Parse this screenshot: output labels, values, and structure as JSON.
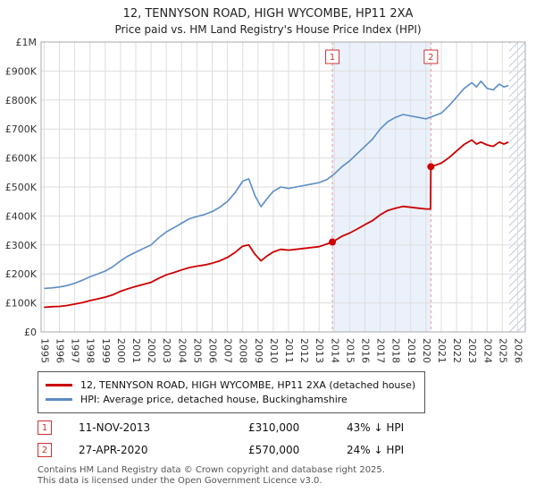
{
  "chart_data": {
    "type": "line",
    "title": "12, TENNYSON ROAD, HIGH WYCOMBE, HP11 2XA",
    "subtitle": "Price paid vs. HM Land Registry's House Price Index (HPI)",
    "xlim": [
      1994.8,
      2026.5
    ],
    "ylim": [
      0,
      1000000
    ],
    "x_ticks": [
      1995,
      1996,
      1997,
      1998,
      1999,
      2000,
      2001,
      2002,
      2003,
      2004,
      2005,
      2006,
      2007,
      2008,
      2009,
      2010,
      2011,
      2012,
      2013,
      2014,
      2015,
      2016,
      2017,
      2018,
      2019,
      2020,
      2021,
      2022,
      2023,
      2024,
      2025,
      2026
    ],
    "y_ticks": [
      [
        0,
        "£0"
      ],
      [
        100000,
        "£100K"
      ],
      [
        200000,
        "£200K"
      ],
      [
        300000,
        "£300K"
      ],
      [
        400000,
        "£400K"
      ],
      [
        500000,
        "£500K"
      ],
      [
        600000,
        "£600K"
      ],
      [
        700000,
        "£700K"
      ],
      [
        800000,
        "£800K"
      ],
      [
        900000,
        "£900K"
      ],
      [
        1000000,
        "£1M"
      ]
    ],
    "grid": true,
    "legend_position": "bottom",
    "colors": {
      "grid": "#dedede",
      "frame": "#aaaaaa",
      "band": "#eaf1fb",
      "hatch": "#bccbe2",
      "sale_line": "#e59999",
      "marker": "#cc0000",
      "marker_box": "#cc3333"
    },
    "shaded_region": [
      2013.87,
      2020.32
    ],
    "hatch_region": [
      2025.45,
      2026.5
    ],
    "markers": [
      {
        "label": "1",
        "x": 2013.87,
        "y": 310000
      },
      {
        "label": "2",
        "x": 2020.32,
        "y": 570000
      }
    ],
    "series": [
      {
        "key": "price-paid",
        "name": "12, TENNYSON ROAD, HIGH WYCOMBE, HP11 2XA (detached house)",
        "color": "#cc0000",
        "width": 1.8,
        "x": [
          1995,
          1995.5,
          1996,
          1996.5,
          1997,
          1997.5,
          1998,
          1998.5,
          1999,
          1999.5,
          2000,
          2000.5,
          2001,
          2001.5,
          2002,
          2002.5,
          2003,
          2003.5,
          2004,
          2004.5,
          2005,
          2005.5,
          2006,
          2006.5,
          2007,
          2007.5,
          2008,
          2008.4,
          2008.8,
          2009.2,
          2009.6,
          2010,
          2010.5,
          2011,
          2011.5,
          2012,
          2012.5,
          2013,
          2013.87,
          2014.5,
          2015,
          2015.5,
          2016,
          2016.5,
          2017,
          2017.5,
          2018,
          2018.5,
          2019,
          2019.5,
          2020,
          2020.3,
          2020.32,
          2020.6,
          2021,
          2021.5,
          2022,
          2022.5,
          2023,
          2023.3,
          2023.6,
          2024,
          2024.4,
          2024.8,
          2025.1,
          2025.4
        ],
        "y": [
          85000,
          87000,
          88000,
          91000,
          96000,
          101000,
          108000,
          114000,
          120000,
          128000,
          140000,
          149000,
          157000,
          164000,
          171000,
          185000,
          197000,
          205000,
          214000,
          222000,
          227000,
          231000,
          237000,
          245000,
          257000,
          274000,
          296000,
          300000,
          268000,
          245000,
          262000,
          276000,
          285000,
          282000,
          285000,
          288000,
          291000,
          294000,
          310000,
          330000,
          341000,
          355000,
          370000,
          384000,
          404000,
          419000,
          427000,
          433000,
          430000,
          427000,
          424000,
          424000,
          570000,
          575000,
          582000,
          601000,
          624000,
          647000,
          662000,
          648000,
          655000,
          645000,
          640000,
          655000,
          648000,
          655000
        ]
      },
      {
        "key": "hpi",
        "name": "HPI: Average price, detached house, Buckinghamshire",
        "color": "#5b8dc5",
        "width": 1.6,
        "x": [
          1995,
          1995.5,
          1996,
          1996.5,
          1997,
          1997.5,
          1998,
          1998.5,
          1999,
          1999.5,
          2000,
          2000.5,
          2001,
          2001.5,
          2002,
          2002.5,
          2003,
          2003.5,
          2004,
          2004.5,
          2005,
          2005.5,
          2006,
          2006.5,
          2007,
          2007.5,
          2008,
          2008.4,
          2008.8,
          2009.2,
          2009.6,
          2010,
          2010.5,
          2011,
          2011.5,
          2012,
          2012.5,
          2013,
          2013.5,
          2014,
          2014.5,
          2015,
          2015.5,
          2016,
          2016.5,
          2017,
          2017.5,
          2018,
          2018.5,
          2019,
          2019.5,
          2020,
          2020.5,
          2021,
          2021.5,
          2022,
          2022.5,
          2023,
          2023.3,
          2023.6,
          2024,
          2024.4,
          2024.8,
          2025.1,
          2025.4
        ],
        "y": [
          150000,
          152000,
          155000,
          160000,
          168000,
          178000,
          190000,
          200000,
          210000,
          225000,
          245000,
          262000,
          275000,
          288000,
          300000,
          325000,
          345000,
          360000,
          375000,
          390000,
          398000,
          405000,
          415000,
          430000,
          450000,
          480000,
          520000,
          528000,
          470000,
          432000,
          460000,
          485000,
          500000,
          495000,
          500000,
          505000,
          510000,
          515000,
          525000,
          545000,
          570000,
          590000,
          615000,
          640000,
          665000,
          700000,
          725000,
          740000,
          750000,
          745000,
          740000,
          735000,
          745000,
          755000,
          780000,
          810000,
          840000,
          860000,
          845000,
          865000,
          840000,
          835000,
          855000,
          845000,
          850000
        ]
      }
    ]
  },
  "events": [
    {
      "num": "1",
      "date": "11-NOV-2013",
      "price": "£310,000",
      "delta": "43% ↓ HPI"
    },
    {
      "num": "2",
      "date": "27-APR-2020",
      "price": "£570,000",
      "delta": "24% ↓ HPI"
    }
  ],
  "footer": {
    "line1": "Contains HM Land Registry data © Crown copyright and database right 2025.",
    "line2": "This data is licensed under the Open Government Licence v3.0."
  }
}
